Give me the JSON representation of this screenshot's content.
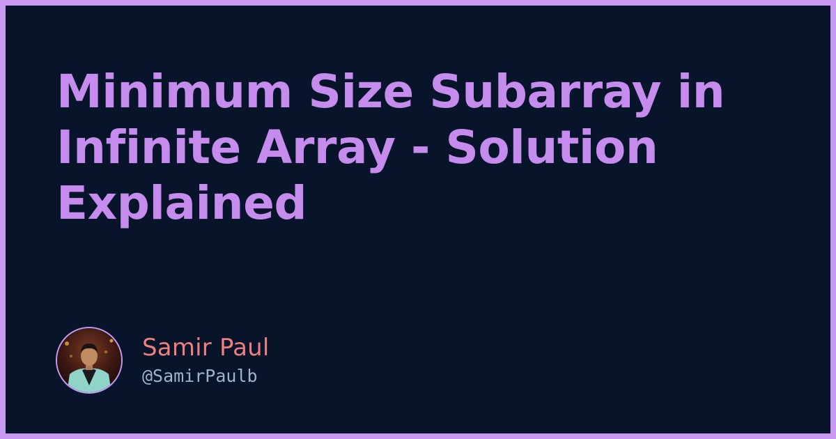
{
  "title": "Minimum Size Subarray in Infinite Array - Solution Explained",
  "author": {
    "name": "Samir Paul",
    "handle": "@SamirPaulb",
    "avatar_icon": "person-photo-avatar"
  },
  "colors": {
    "border": "#c89af0",
    "background": "#07142a",
    "title": "#c58ced",
    "author_name": "#ee7f7f",
    "author_handle": "#9fb3cf"
  }
}
